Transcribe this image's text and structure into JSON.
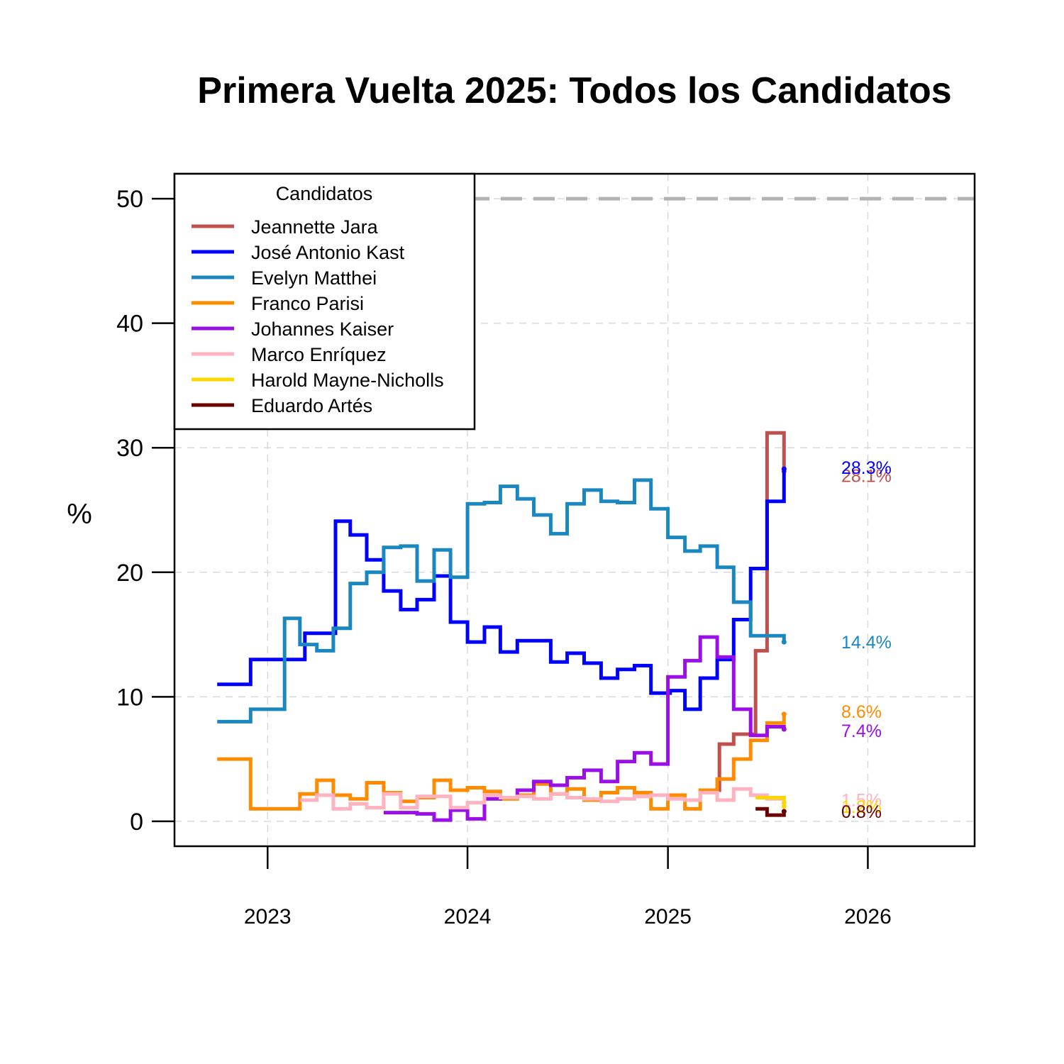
{
  "chart_data": {
    "type": "line",
    "step": true,
    "title": "Primera Vuelta 2025: Todos los Candidatos",
    "xlabel": "",
    "ylabel": "%",
    "xlim": [
      "2022-07-15",
      "2026-07-15"
    ],
    "ylim": [
      -2,
      52
    ],
    "x_ticks": [
      {
        "date": "2023-01-01",
        "label": "2023"
      },
      {
        "date": "2024-01-01",
        "label": "2024"
      },
      {
        "date": "2025-01-01",
        "label": "2025"
      },
      {
        "date": "2026-01-01",
        "label": "2026"
      }
    ],
    "y_ticks": [
      0,
      10,
      20,
      30,
      40,
      50
    ],
    "reference_line": {
      "y": 50,
      "style": "dashed",
      "color": "#b3b3b3"
    },
    "grid": true,
    "legend": {
      "title": "Candidatos",
      "position": "top-left"
    },
    "series": [
      {
        "name": "Jeannette Jara",
        "color": "#c0504d",
        "end_label": "28.1%",
        "points": [
          [
            "2025-03-10",
            2.5
          ],
          [
            "2025-04-05",
            6.2
          ],
          [
            "2025-05-01",
            7
          ],
          [
            "2025-06-10",
            13.7
          ],
          [
            "2025-07-01",
            31.2
          ],
          [
            "2025-08-01",
            28.1
          ]
        ]
      },
      {
        "name": "José Antonio Kast",
        "color": "#0000ff",
        "end_label": "28.3%",
        "points": [
          [
            "2022-10-01",
            11
          ],
          [
            "2022-12-01",
            13
          ],
          [
            "2023-03-10",
            15.1
          ],
          [
            "2023-05-05",
            24.1
          ],
          [
            "2023-06-01",
            23
          ],
          [
            "2023-07-01",
            21
          ],
          [
            "2023-08-01",
            18.5
          ],
          [
            "2023-09-01",
            17
          ],
          [
            "2023-10-01",
            17.8
          ],
          [
            "2023-11-01",
            19.7
          ],
          [
            "2023-12-01",
            16
          ],
          [
            "2024-01-01",
            14.4
          ],
          [
            "2024-02-01",
            15.6
          ],
          [
            "2024-03-01",
            13.6
          ],
          [
            "2024-04-01",
            14.5
          ],
          [
            "2024-06-01",
            12.8
          ],
          [
            "2024-07-01",
            13.5
          ],
          [
            "2024-08-01",
            12.7
          ],
          [
            "2024-09-01",
            11.5
          ],
          [
            "2024-10-01",
            12.2
          ],
          [
            "2024-11-01",
            12.5
          ],
          [
            "2024-12-01",
            10.3
          ],
          [
            "2025-01-05",
            10.5
          ],
          [
            "2025-02-01",
            9
          ],
          [
            "2025-03-01",
            11.5
          ],
          [
            "2025-04-01",
            13
          ],
          [
            "2025-05-01",
            16.2
          ],
          [
            "2025-06-01",
            20.3
          ],
          [
            "2025-07-01",
            25.7
          ],
          [
            "2025-08-01",
            28.3
          ]
        ]
      },
      {
        "name": "Evelyn Matthei",
        "color": "#1a87c1",
        "end_label": "14.4%",
        "points": [
          [
            "2022-10-01",
            8
          ],
          [
            "2022-12-01",
            9
          ],
          [
            "2023-02-01",
            16.3
          ],
          [
            "2023-03-01",
            14.2
          ],
          [
            "2023-04-01",
            13.7
          ],
          [
            "2023-05-01",
            15.5
          ],
          [
            "2023-06-01",
            19.1
          ],
          [
            "2023-07-01",
            20
          ],
          [
            "2023-08-01",
            22
          ],
          [
            "2023-09-01",
            22.1
          ],
          [
            "2023-10-01",
            19.3
          ],
          [
            "2023-11-01",
            21.8
          ],
          [
            "2023-12-01",
            19.6
          ],
          [
            "2024-01-01",
            25.5
          ],
          [
            "2024-02-01",
            25.6
          ],
          [
            "2024-03-01",
            26.9
          ],
          [
            "2024-04-01",
            25.9
          ],
          [
            "2024-05-01",
            24.6
          ],
          [
            "2024-06-01",
            23.1
          ],
          [
            "2024-07-01",
            25.5
          ],
          [
            "2024-08-01",
            26.6
          ],
          [
            "2024-09-01",
            25.7
          ],
          [
            "2024-10-01",
            25.6
          ],
          [
            "2024-11-01",
            27.4
          ],
          [
            "2024-12-01",
            25.1
          ],
          [
            "2025-01-01",
            22.8
          ],
          [
            "2025-02-01",
            21.7
          ],
          [
            "2025-03-01",
            22.1
          ],
          [
            "2025-04-01",
            20.4
          ],
          [
            "2025-05-01",
            17.6
          ],
          [
            "2025-06-01",
            14.9
          ],
          [
            "2025-07-01",
            14.9
          ],
          [
            "2025-08-01",
            14.4
          ]
        ]
      },
      {
        "name": "Franco Parisi",
        "color": "#ff8c00",
        "end_label": "8.6%",
        "points": [
          [
            "2022-10-01",
            5
          ],
          [
            "2022-12-01",
            1
          ],
          [
            "2023-03-01",
            2.2
          ],
          [
            "2023-04-01",
            3.3
          ],
          [
            "2023-05-01",
            2.1
          ],
          [
            "2023-06-01",
            1.8
          ],
          [
            "2023-07-01",
            3.1
          ],
          [
            "2023-08-01",
            2.3
          ],
          [
            "2023-09-01",
            1.6
          ],
          [
            "2023-10-01",
            1.9
          ],
          [
            "2023-11-01",
            3.3
          ],
          [
            "2023-12-01",
            2.5
          ],
          [
            "2024-01-01",
            2.7
          ],
          [
            "2024-02-01",
            2.4
          ],
          [
            "2024-03-01",
            1.8
          ],
          [
            "2024-04-01",
            2.1
          ],
          [
            "2024-05-01",
            3
          ],
          [
            "2024-06-01",
            2.2
          ],
          [
            "2024-07-01",
            2.6
          ],
          [
            "2024-08-01",
            1.7
          ],
          [
            "2024-09-01",
            2.3
          ],
          [
            "2024-10-01",
            2.7
          ],
          [
            "2024-11-01",
            2.3
          ],
          [
            "2024-12-01",
            1
          ],
          [
            "2025-01-01",
            2.1
          ],
          [
            "2025-02-01",
            1
          ],
          [
            "2025-03-01",
            2.5
          ],
          [
            "2025-04-01",
            3.4
          ],
          [
            "2025-05-01",
            5
          ],
          [
            "2025-06-01",
            6.5
          ],
          [
            "2025-07-01",
            7.9
          ],
          [
            "2025-08-01",
            8.6
          ]
        ]
      },
      {
        "name": "Johannes Kaiser",
        "color": "#9a0ee8",
        "end_label": "7.4%",
        "points": [
          [
            "2023-08-01",
            0.7
          ],
          [
            "2023-10-01",
            0.6
          ],
          [
            "2023-11-01",
            0.1
          ],
          [
            "2023-12-01",
            0.9
          ],
          [
            "2024-01-01",
            0.2
          ],
          [
            "2024-02-01",
            1.8
          ],
          [
            "2024-03-01",
            1.9
          ],
          [
            "2024-04-01",
            2.5
          ],
          [
            "2024-05-01",
            3.2
          ],
          [
            "2024-06-01",
            2.9
          ],
          [
            "2024-07-01",
            3.5
          ],
          [
            "2024-08-01",
            4.1
          ],
          [
            "2024-09-01",
            3.2
          ],
          [
            "2024-10-01",
            4.8
          ],
          [
            "2024-11-01",
            5.5
          ],
          [
            "2024-12-01",
            4.6
          ],
          [
            "2025-01-01",
            11.6
          ],
          [
            "2025-02-01",
            12.9
          ],
          [
            "2025-03-01",
            14.8
          ],
          [
            "2025-04-01",
            13.2
          ],
          [
            "2025-05-01",
            9
          ],
          [
            "2025-06-01",
            6.9
          ],
          [
            "2025-07-01",
            7.6
          ],
          [
            "2025-08-01",
            7.4
          ]
        ]
      },
      {
        "name": "Marco Enríquez",
        "color": "#ffb2c0",
        "end_label": "1.5%",
        "points": [
          [
            "2023-03-01",
            1.7
          ],
          [
            "2023-04-01",
            2.1
          ],
          [
            "2023-05-01",
            1
          ],
          [
            "2023-06-01",
            1.4
          ],
          [
            "2023-07-01",
            1.1
          ],
          [
            "2023-08-01",
            2.2
          ],
          [
            "2023-09-01",
            1.1
          ],
          [
            "2023-10-01",
            2
          ],
          [
            "2023-11-01",
            2
          ],
          [
            "2023-12-01",
            1.1
          ],
          [
            "2024-01-01",
            1.5
          ],
          [
            "2024-02-01",
            2.1
          ],
          [
            "2024-03-01",
            1.9
          ],
          [
            "2024-04-01",
            2
          ],
          [
            "2024-05-01",
            1.8
          ],
          [
            "2024-06-01",
            2.2
          ],
          [
            "2024-07-01",
            1.9
          ],
          [
            "2024-08-01",
            1.8
          ],
          [
            "2024-09-01",
            1.6
          ],
          [
            "2024-10-01",
            1.8
          ],
          [
            "2024-11-01",
            2
          ],
          [
            "2024-12-01",
            2.1
          ],
          [
            "2025-01-01",
            1.8
          ],
          [
            "2025-02-01",
            1.7
          ],
          [
            "2025-03-01",
            2.3
          ],
          [
            "2025-04-01",
            1.7
          ],
          [
            "2025-05-01",
            2.6
          ],
          [
            "2025-06-01",
            2.1
          ],
          [
            "2025-07-01",
            1.8
          ],
          [
            "2025-08-01",
            1.5
          ]
        ]
      },
      {
        "name": "Harold Mayne-Nicholls",
        "color": "#ffd700",
        "end_label": "1.2%",
        "points": [
          [
            "2025-06-10",
            1.9
          ],
          [
            "2025-07-01",
            1.9
          ],
          [
            "2025-08-01",
            1.2
          ]
        ]
      },
      {
        "name": "Eduardo Artés",
        "color": "#6b0000",
        "end_label": "0.8%",
        "points": [
          [
            "2025-06-10",
            1
          ],
          [
            "2025-07-01",
            0.5
          ],
          [
            "2025-08-01",
            0.8
          ]
        ]
      }
    ]
  }
}
